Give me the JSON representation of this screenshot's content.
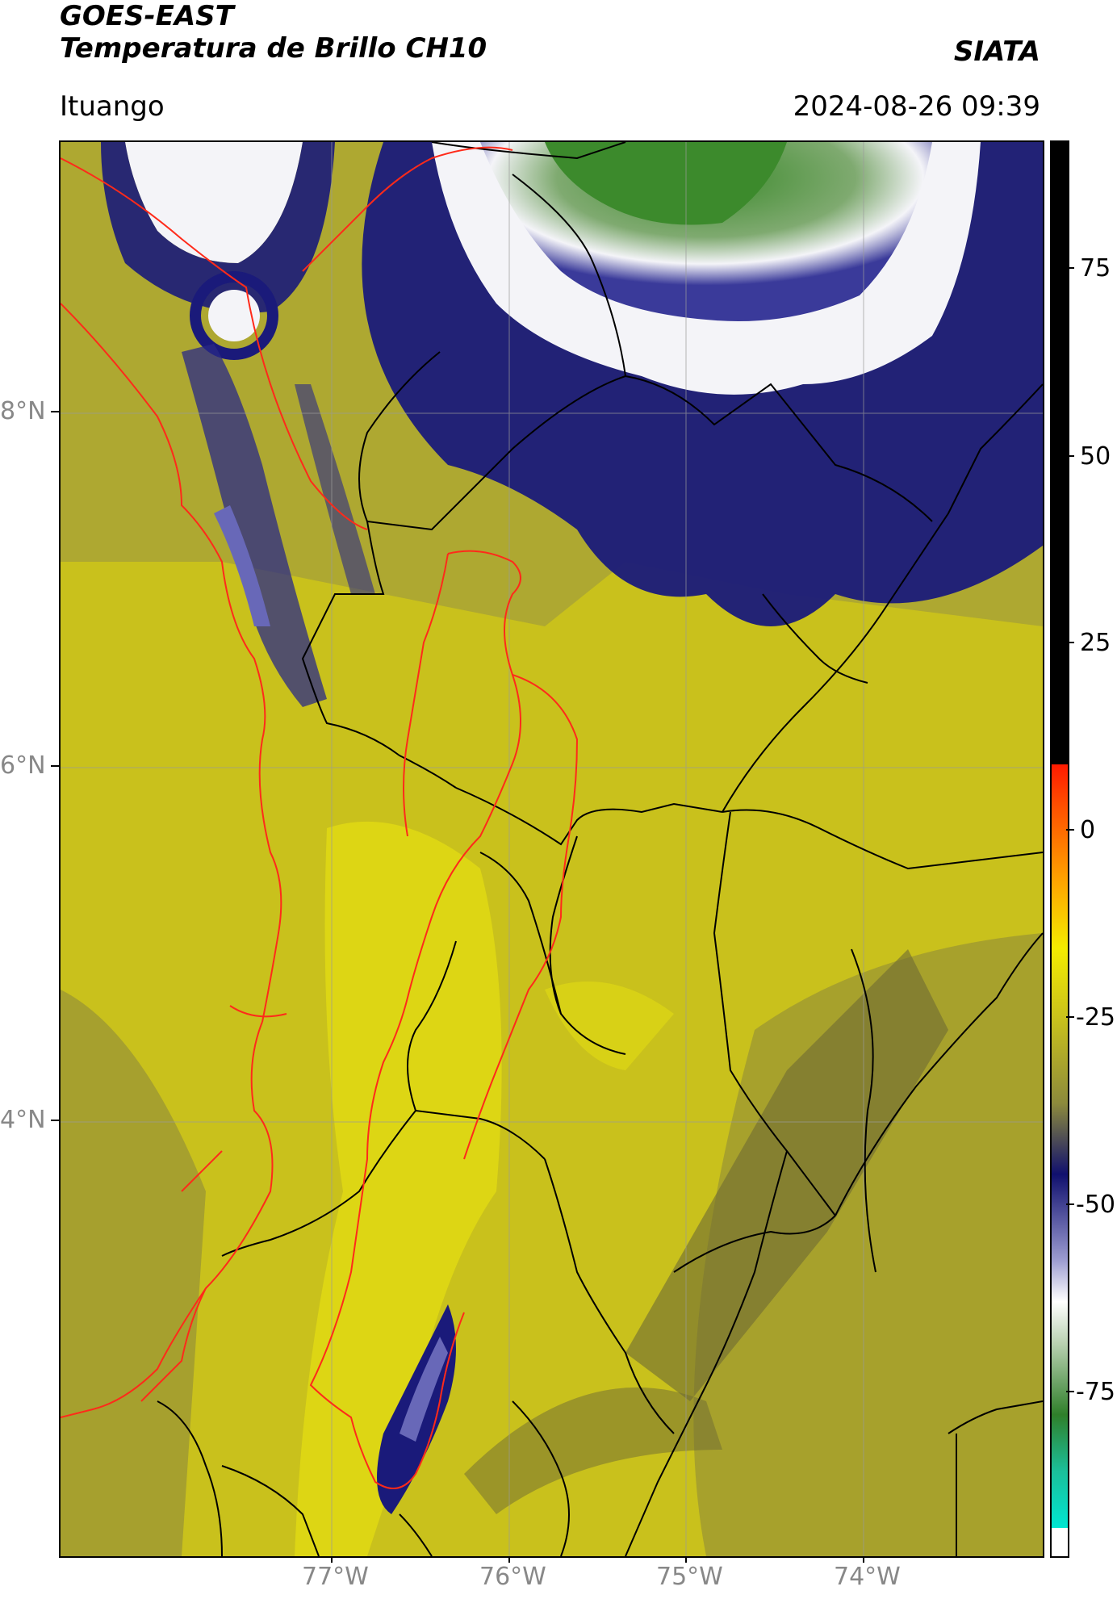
{
  "header": {
    "title_line1": "GOES-EAST",
    "title_line2": "Temperatura de Brillo CH10",
    "organization": "SIATA",
    "region": "Ituango",
    "datetime": "2024-08-26 09:39"
  },
  "map": {
    "lat_labels": [
      "8°N",
      "6°N",
      "4°N"
    ],
    "lon_labels": [
      "77°W",
      "76°W",
      "75°W",
      "74°W"
    ],
    "colors": {
      "background_yellow": "#c9c11c",
      "dark_olive": "#6e6a33",
      "navy": "#1a1a7a",
      "white": "#f4f4f8",
      "green": "#3c8a2c",
      "border_red": "#ff2a1a",
      "border_black": "#000000",
      "grid": "#9a9a9a"
    }
  },
  "colorbar": {
    "tick_labels": [
      "75",
      "50",
      "25",
      "0",
      "-25",
      "-50",
      "-75"
    ],
    "colors": {
      "top_black": "#000000",
      "red": "#ff1a00",
      "orange": "#ffa000",
      "yellow": "#f4ec00",
      "olive": "#8c8a3c",
      "navy": "#10106e",
      "lavender": "#9a9ad0",
      "white": "#ffffff",
      "green": "#2f7f2a",
      "cyan": "#00e6d2"
    }
  }
}
